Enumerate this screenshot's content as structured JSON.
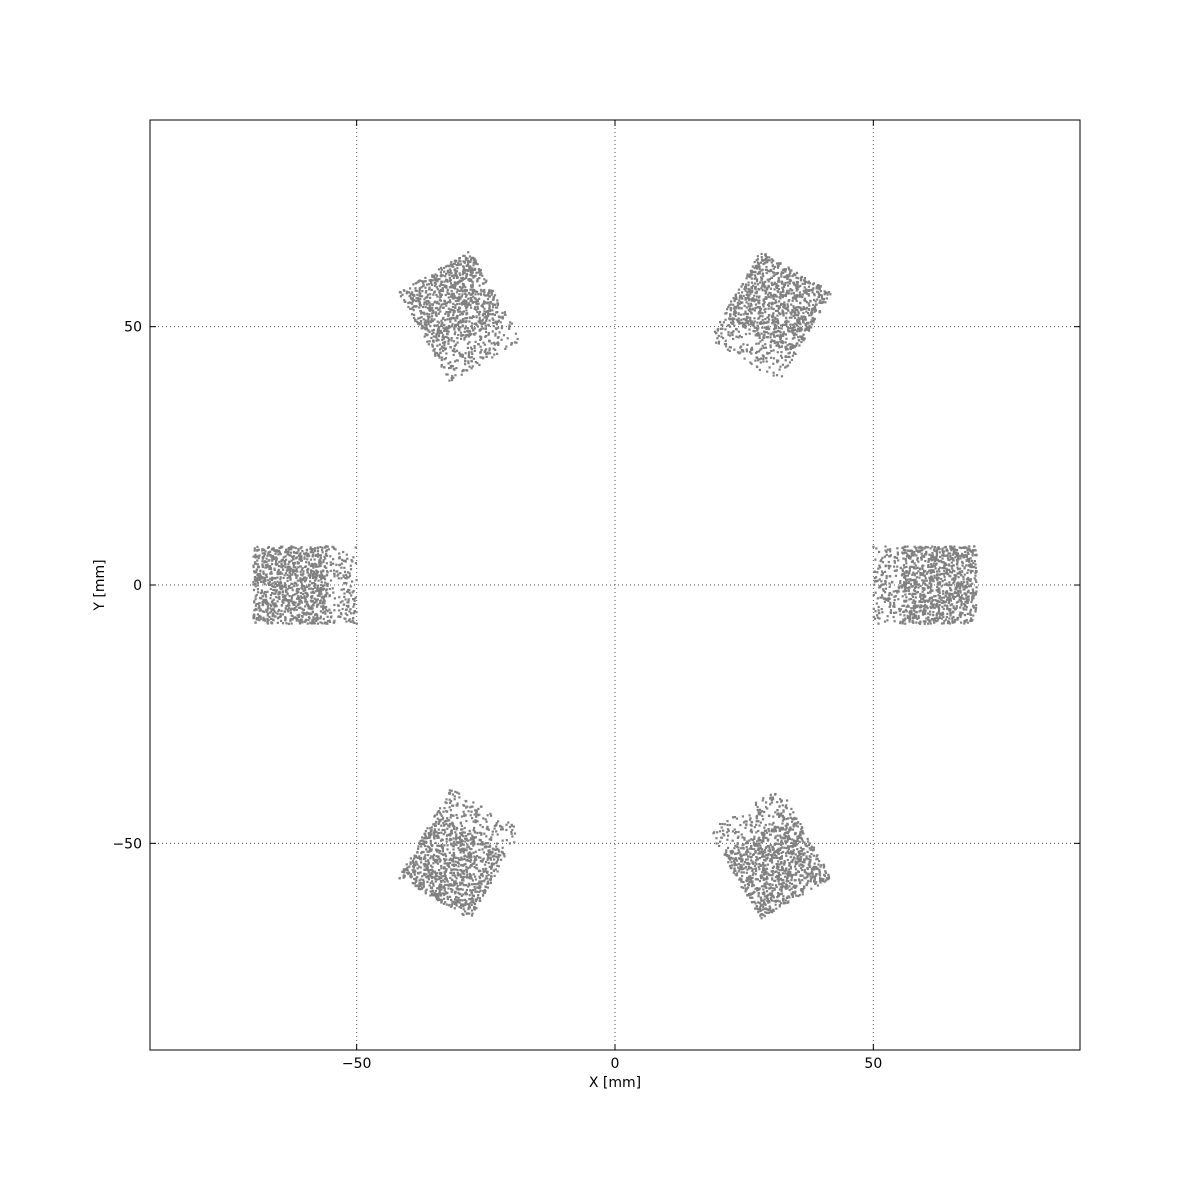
{
  "chart_data": {
    "type": "scatter",
    "title": "",
    "xlabel": "X [mm]",
    "ylabel": "Y [mm]",
    "xlim": [
      -90,
      90
    ],
    "ylim": [
      -90,
      90
    ],
    "xticks": [
      -50,
      0,
      50
    ],
    "yticks": [
      -50,
      0,
      50
    ],
    "xtick_labels": [
      "−50",
      "0",
      "50"
    ],
    "ytick_labels": [
      "−50",
      "0",
      "50"
    ],
    "grid": true,
    "point_color": "#808080",
    "point_shape": "square",
    "points_per_cluster": 1400,
    "clusters": [
      {
        "name": "",
        "center": [
          -60,
          0
        ],
        "width": 20,
        "height": 15,
        "angle_deg": 0,
        "sparse_side": "right"
      },
      {
        "name": "",
        "center": [
          60,
          0
        ],
        "width": 20,
        "height": 15,
        "angle_deg": 0,
        "sparse_side": "left"
      },
      {
        "name": "",
        "center": [
          -30,
          52
        ],
        "width": 16,
        "height": 20,
        "angle_deg": 30,
        "sparse_side": "bottom"
      },
      {
        "name": "",
        "center": [
          30,
          52
        ],
        "width": 16,
        "height": 20,
        "angle_deg": -30,
        "sparse_side": "bottom"
      },
      {
        "name": "",
        "center": [
          -30,
          -52
        ],
        "width": 16,
        "height": 20,
        "angle_deg": -30,
        "sparse_side": "top"
      },
      {
        "name": "",
        "center": [
          30,
          -52
        ],
        "width": 16,
        "height": 20,
        "angle_deg": 30,
        "sparse_side": "top"
      }
    ]
  }
}
